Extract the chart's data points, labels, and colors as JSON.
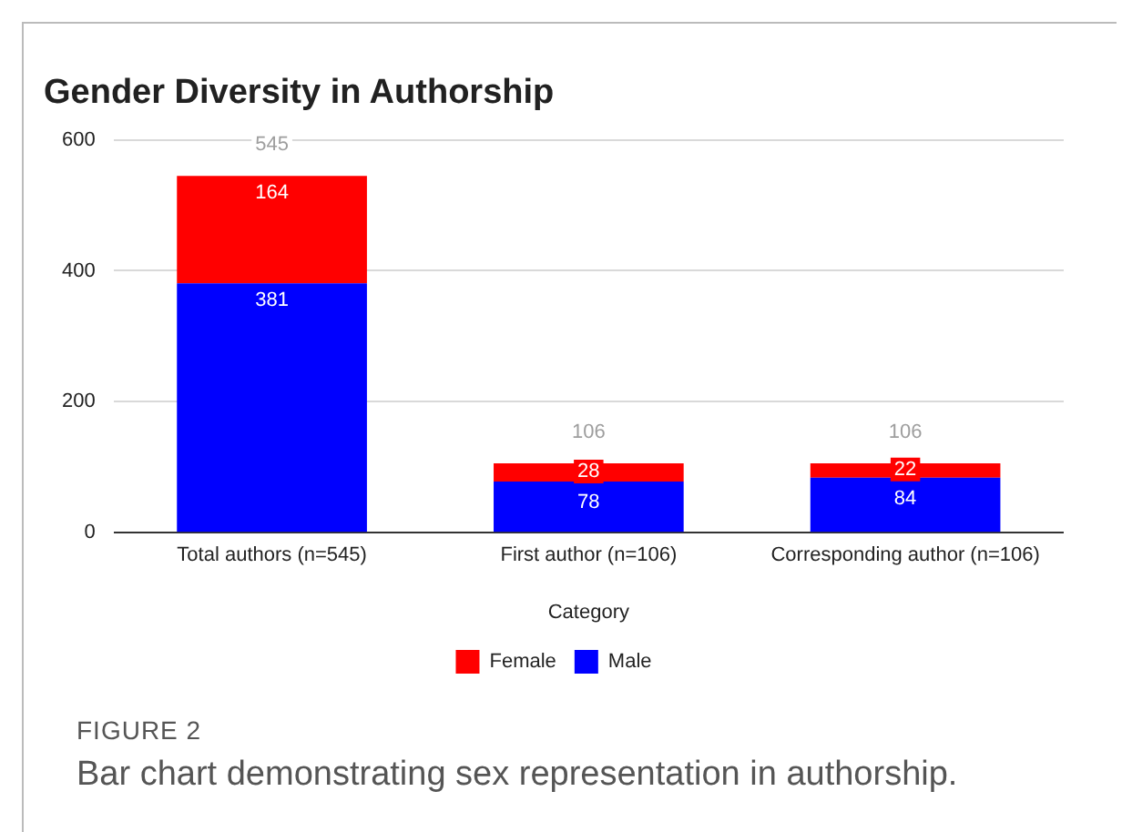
{
  "chart_data": {
    "type": "bar",
    "title": "Gender Diversity in Authorship",
    "xlabel": "Category",
    "categories": [
      "Total authors (n=545)",
      "First author (n=106)",
      "Corresponding author (n=106)"
    ],
    "series": [
      {
        "name": "Male",
        "color": "#0000ff",
        "values": [
          381,
          78,
          84
        ]
      },
      {
        "name": "Female",
        "color": "#ff0000",
        "values": [
          164,
          28,
          22
        ]
      }
    ],
    "stacked": true,
    "data_labels": true,
    "totals": [
      "545",
      "106",
      "106"
    ],
    "ylim": [
      0,
      600
    ],
    "yticks": [
      0,
      200,
      400,
      600
    ],
    "grid": "y",
    "legend": "bottom",
    "annotations": [
      "FIGURE 2",
      "Bar chart demonstrating sex representation in authorship."
    ]
  }
}
